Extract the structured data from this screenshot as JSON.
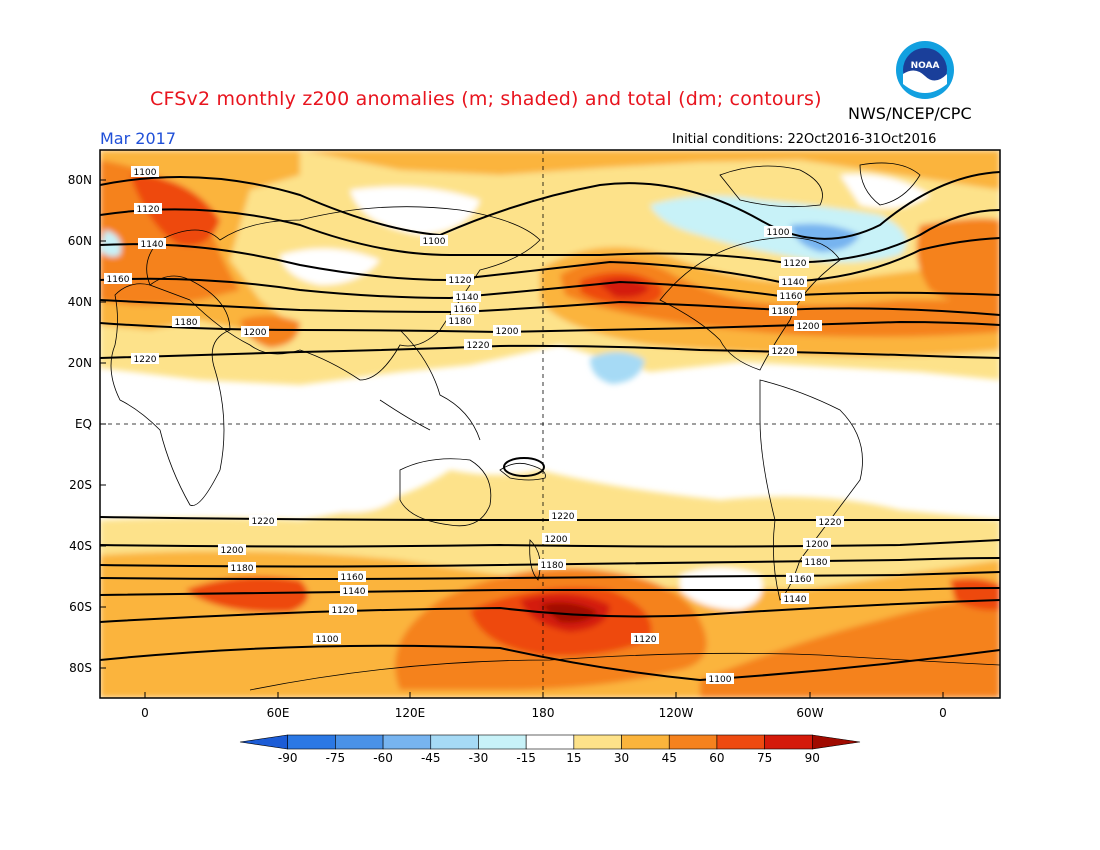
{
  "header": {
    "title": "CFSv2 monthly z200 anomalies (m; shaded) and total (dm; contours)",
    "agency": "NWS/NCEP/CPC",
    "month": "Mar 2017",
    "initial_conditions": "Initial conditions: 22Oct2016-31Oct2016",
    "logo_text": "NOAA"
  },
  "map": {
    "lat_labels": [
      "80N",
      "60N",
      "40N",
      "20N",
      "EQ",
      "20S",
      "40S",
      "60S",
      "80S"
    ],
    "lon_labels": [
      "0",
      "60E",
      "120E",
      "180",
      "120W",
      "60W",
      "0"
    ],
    "contour_labels": [
      "1100",
      "1120",
      "1140",
      "1160",
      "1180",
      "1200",
      "1220"
    ]
  },
  "colorbar": {
    "labels": [
      "-90",
      "-75",
      "-60",
      "-45",
      "-30",
      "-15",
      "15",
      "30",
      "45",
      "60",
      "75",
      "90"
    ],
    "colors": [
      "#1c5cd6",
      "#2b78e4",
      "#4a92e8",
      "#77b4f0",
      "#a6daf5",
      "#c8f2f8",
      "#ffffff",
      "#fde28a",
      "#fbb43c",
      "#f5821e",
      "#ee4a10",
      "#d41a0a",
      "#a00a00"
    ]
  }
}
